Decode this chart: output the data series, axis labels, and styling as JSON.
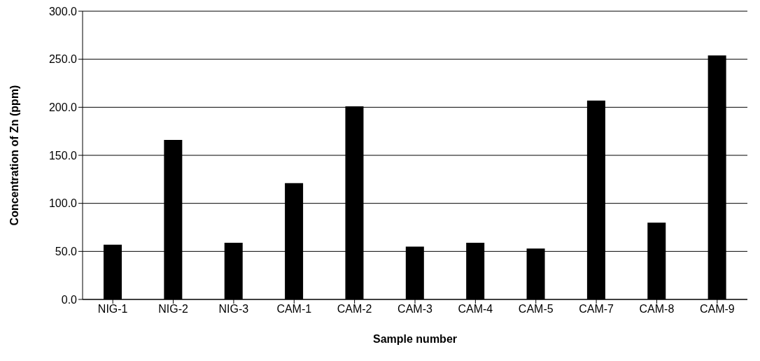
{
  "chart_data": {
    "type": "bar",
    "xlabel": "Sample number",
    "ylabel": "Concentration of Zn (ppm)",
    "categories": [
      "NIG-1",
      "NIG-2",
      "NIG-3",
      "CAM-1",
      "CAM-2",
      "CAM-3",
      "CAM-4",
      "CAM-5",
      "CAM-7",
      "CAM-8",
      "CAM-9"
    ],
    "values": [
      57,
      166,
      59,
      121,
      201,
      55,
      59,
      53,
      207,
      80,
      254
    ],
    "color": "#000000",
    "ylim": [
      0,
      300
    ],
    "yticks": [
      {
        "value": 0,
        "label": "0.0"
      },
      {
        "value": 50,
        "label": "50.0"
      },
      {
        "value": 100,
        "label": "100.0"
      },
      {
        "value": 150,
        "label": "150.0"
      },
      {
        "value": 200,
        "label": "200.0"
      },
      {
        "value": 250,
        "label": "250.0"
      },
      {
        "value": 300,
        "label": "300.0"
      }
    ],
    "grid": "y"
  }
}
